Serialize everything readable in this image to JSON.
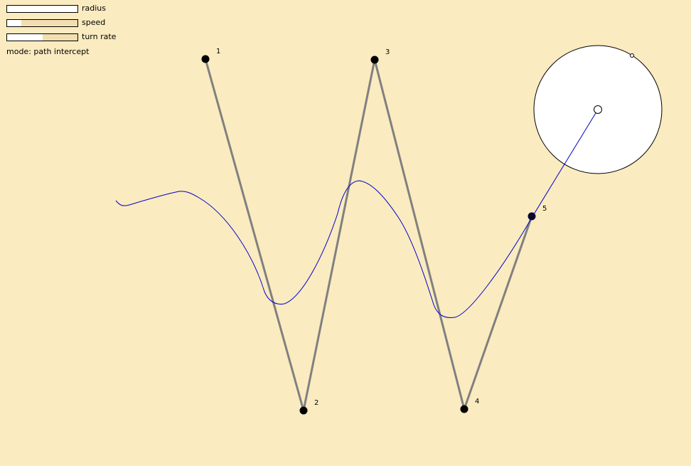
{
  "controls": {
    "sliders": [
      {
        "label": "radius",
        "value": 1.0
      },
      {
        "label": "speed",
        "value": 0.2
      },
      {
        "label": "turn rate",
        "value": 0.5
      }
    ],
    "mode_prefix": "mode:",
    "mode_value": "path intercept"
  },
  "waypoints": [
    "1",
    "2",
    "3",
    "4",
    "5"
  ],
  "colors": {
    "background": "#faebc0",
    "path_segments": "#808080",
    "trail": "#0000cc",
    "waypoint": "#000000",
    "radius_circle_fill": "#ffffff"
  }
}
